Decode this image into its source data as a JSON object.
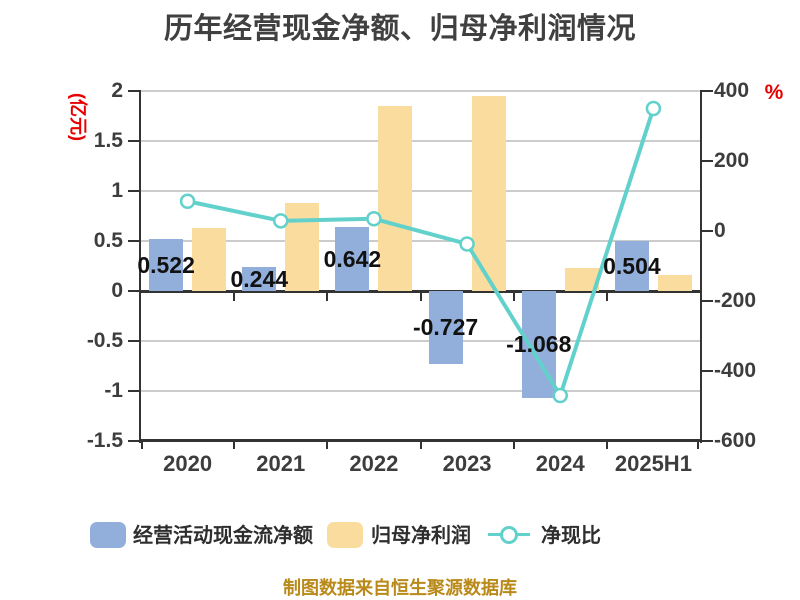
{
  "title": "历年经营现金净额、归母净利润情况",
  "caption": "制图数据来自恒生聚源数据库",
  "left_axis": {
    "unit": "(亿元)",
    "tick_values": [
      2,
      1.5,
      1,
      0.5,
      0,
      -0.5,
      -1,
      -1.5
    ]
  },
  "right_axis": {
    "unit": "%",
    "tick_values": [
      400,
      200,
      0,
      -200,
      -400,
      -600
    ]
  },
  "chart_data": {
    "type": "bar",
    "categories": [
      "2020",
      "2021",
      "2022",
      "2023",
      "2024",
      "2025H1"
    ],
    "series": [
      {
        "name": "经营活动现金流净额",
        "type": "bar",
        "axis": "left",
        "color": "#92afdc",
        "values": [
          0.522,
          0.244,
          0.642,
          -0.727,
          -1.068,
          0.504
        ],
        "labels": [
          "0.522",
          "0.244",
          "0.642",
          "-0.727",
          "-1.068",
          "0.504"
        ]
      },
      {
        "name": "归母净利润",
        "type": "bar",
        "axis": "left",
        "color": "#fbdc9f",
        "values": [
          0.63,
          0.88,
          1.85,
          1.95,
          0.23,
          0.16
        ]
      },
      {
        "name": "净现比",
        "type": "line",
        "axis": "right",
        "color": "#63d1cb",
        "marker": "circle",
        "values": [
          85,
          29,
          35,
          -37,
          -470,
          350
        ]
      }
    ],
    "left_ylim": [
      -1.5,
      2
    ],
    "right_ylim": [
      -600,
      400
    ],
    "grid": true,
    "legend_position": "bottom"
  },
  "colors": {
    "bar_blue": "#92afdc",
    "bar_yellow": "#fbdc9f",
    "line_teal": "#63d1cb",
    "axis_line": "#333333",
    "gridline": "#cccccc",
    "title_text": "#404040",
    "tick_text": "#3d3d3d",
    "data_label": "#111111",
    "unit_red": "#e60000",
    "caption_gold": "#b98a1a"
  }
}
